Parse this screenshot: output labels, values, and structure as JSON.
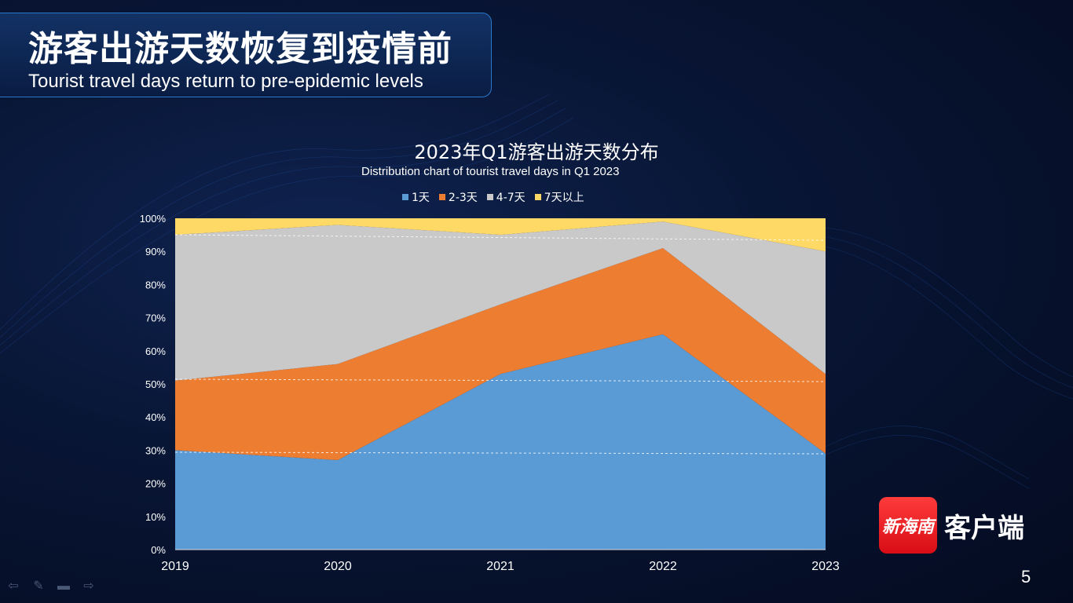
{
  "slide": {
    "title_cn": "游客出游天数恢复到疫情前",
    "title_en": "Tourist travel days return to pre-epidemic levels",
    "page_number": "5"
  },
  "logo": {
    "mark_text": "新海南",
    "label": "客户端"
  },
  "colors": {
    "s1": "#5b9bd5",
    "s2": "#ed7d31",
    "s3": "#c9c9c9",
    "s4": "#ffd966"
  },
  "icons": [
    "back-arrow-icon",
    "pen-icon",
    "menu-icon",
    "forward-arrow-icon"
  ],
  "chart_data": {
    "type": "area",
    "stacked": "percent",
    "title": "2023年Q1游客出游天数分布",
    "subtitle": "Distribution chart of tourist travel days in Q1 2023",
    "x": [
      "2019",
      "2020",
      "2021",
      "2022",
      "2023"
    ],
    "yticks": [
      "0%",
      "10%",
      "20%",
      "30%",
      "40%",
      "50%",
      "60%",
      "70%",
      "80%",
      "90%",
      "100%"
    ],
    "ylim": [
      0,
      100
    ],
    "legend_position": "top",
    "series": [
      {
        "name": "1天",
        "values": [
          30,
          27,
          53,
          65,
          29
        ]
      },
      {
        "name": "2-3天",
        "values": [
          21,
          29,
          21,
          26,
          24
        ]
      },
      {
        "name": "4-7天",
        "values": [
          44,
          42,
          21,
          8,
          37
        ]
      },
      {
        "name": "7天以上",
        "values": [
          5,
          2,
          5,
          1,
          10
        ]
      }
    ]
  }
}
